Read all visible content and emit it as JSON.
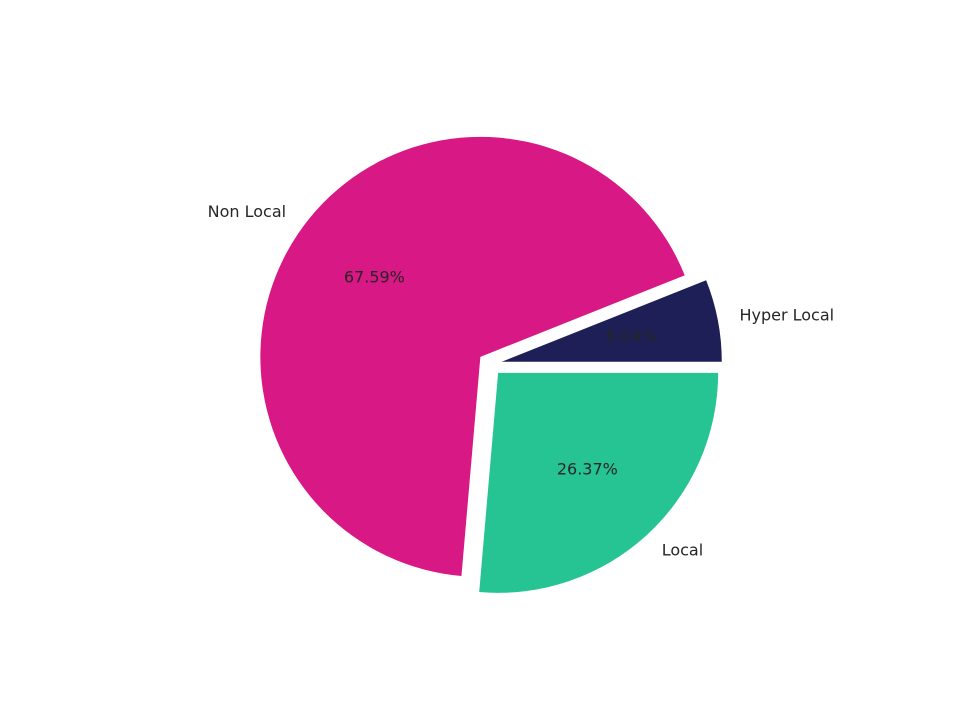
{
  "chart_data": {
    "type": "pie",
    "categories": [
      "Hyper Local",
      "Non Local",
      "Local"
    ],
    "values": [
      6.04,
      67.59,
      26.37
    ],
    "value_labels": [
      "6.04%",
      "67.59%",
      "26.37%"
    ],
    "colors": [
      "#1f1f57",
      "#d81884",
      "#25c492"
    ]
  }
}
